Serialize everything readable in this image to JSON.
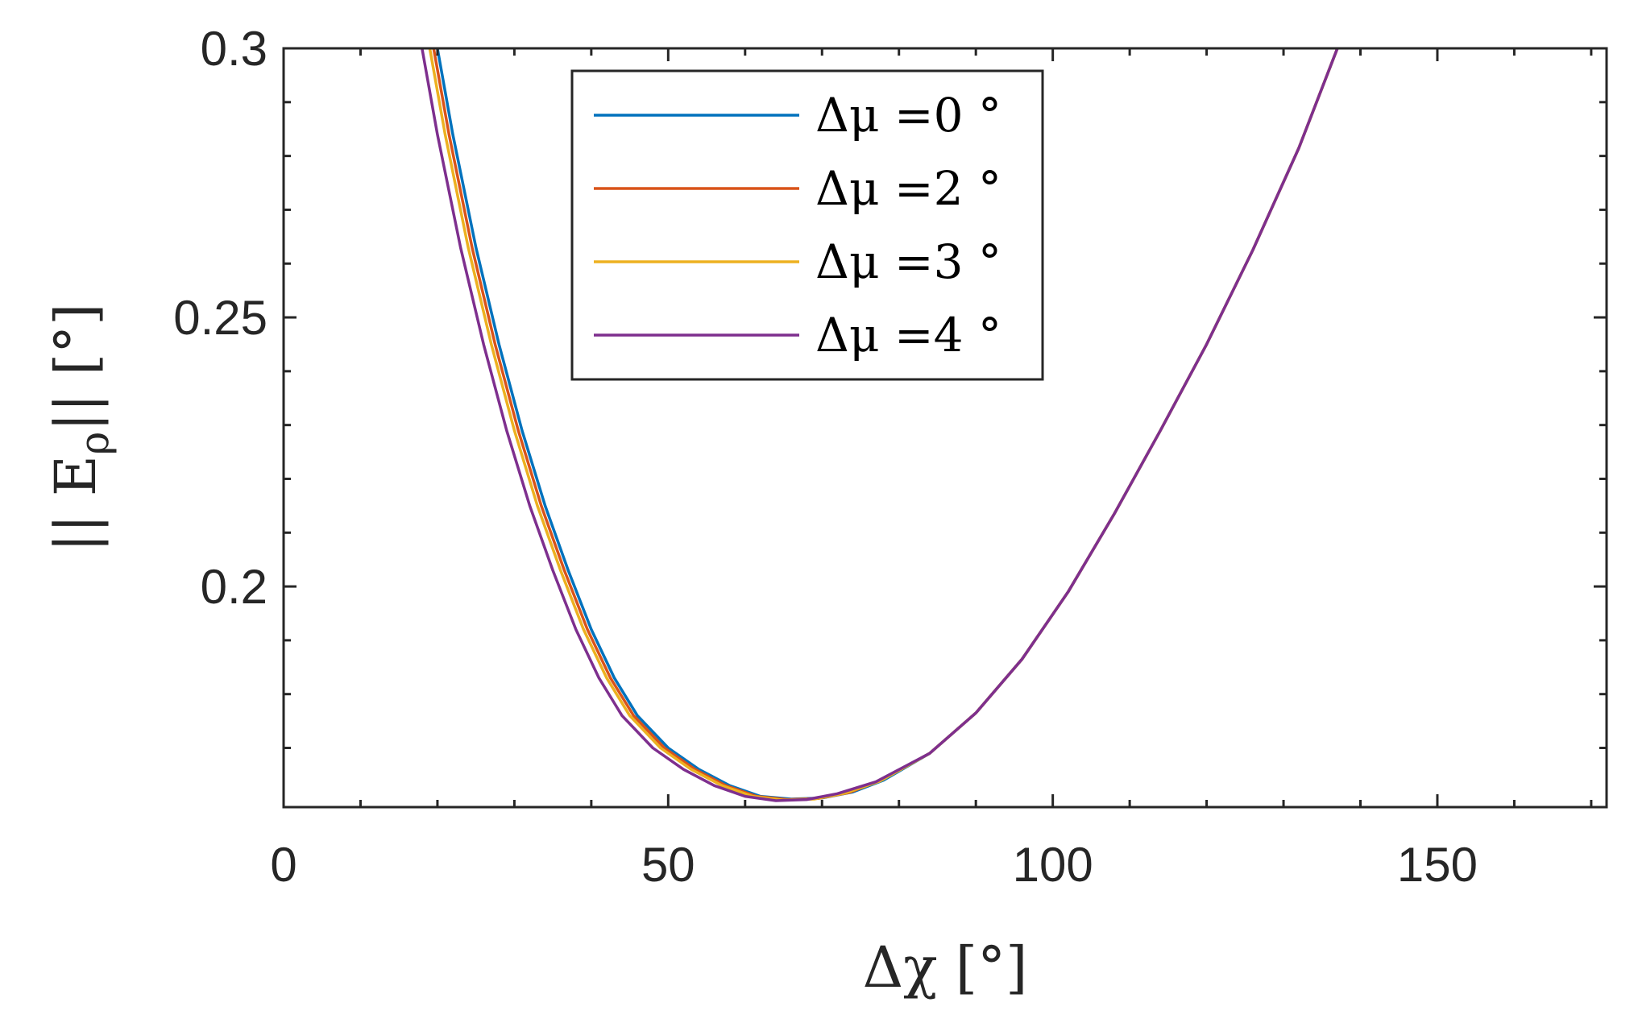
{
  "chart_data": {
    "type": "line",
    "title": "",
    "xlabel": "Δχ [°]",
    "ylabel": "|| E",
    "ylabel_subscript": "ρ",
    "ylabel_suffix": "||  [°]",
    "xlim": [
      0,
      172
    ],
    "ylim": [
      0.159,
      0.3
    ],
    "xticks": [
      0,
      50,
      100,
      150
    ],
    "xtick_labels": [
      "0",
      "50",
      "100",
      "150"
    ],
    "yticks": [
      0.2,
      0.25,
      0.3
    ],
    "ytick_labels": [
      "0.2",
      "0.25",
      "0.3"
    ],
    "grid": false,
    "legend_position": "top-center",
    "series": [
      {
        "name": "Δμ =0 °",
        "color": "#0072BD",
        "x": [
          19.5,
          20,
          22,
          25,
          28,
          31,
          34,
          37,
          40,
          43,
          46,
          50,
          54,
          58,
          62,
          66,
          70,
          74,
          78,
          84,
          90,
          96,
          102,
          108,
          114,
          120,
          126,
          132,
          137
        ],
        "y": [
          0.303,
          0.3,
          0.284,
          0.263,
          0.245,
          0.229,
          0.215,
          0.203,
          0.192,
          0.183,
          0.176,
          0.17,
          0.166,
          0.163,
          0.161,
          0.1605,
          0.1607,
          0.1618,
          0.164,
          0.169,
          0.1765,
          0.1865,
          0.199,
          0.2135,
          0.229,
          0.245,
          0.2625,
          0.2815,
          0.3
        ]
      },
      {
        "name": "Δμ =2 °",
        "color": "#D95319",
        "x": [
          19,
          19.5,
          21.5,
          24.5,
          27.5,
          30.5,
          33.5,
          36.5,
          39.5,
          42.5,
          45.5,
          49.5,
          53.5,
          57.5,
          61.5,
          65.5,
          69.5,
          73.5,
          77.5,
          84,
          90,
          96,
          102,
          108,
          114,
          120,
          126,
          132,
          137
        ],
        "y": [
          0.303,
          0.3,
          0.284,
          0.263,
          0.245,
          0.229,
          0.215,
          0.203,
          0.192,
          0.183,
          0.176,
          0.17,
          0.166,
          0.163,
          0.161,
          0.1604,
          0.1606,
          0.1617,
          0.1639,
          0.169,
          0.1765,
          0.1865,
          0.199,
          0.2135,
          0.229,
          0.245,
          0.2625,
          0.2815,
          0.3
        ]
      },
      {
        "name": "Δμ =3 °",
        "color": "#EDB120",
        "x": [
          18.5,
          19,
          21,
          24,
          27,
          30,
          33,
          36,
          39,
          42,
          45,
          49,
          53,
          57,
          61,
          65,
          69,
          73,
          77.5,
          84,
          90,
          96,
          102,
          108,
          114,
          120,
          126,
          132,
          137
        ],
        "y": [
          0.303,
          0.3,
          0.284,
          0.263,
          0.245,
          0.229,
          0.215,
          0.203,
          0.192,
          0.183,
          0.176,
          0.17,
          0.166,
          0.163,
          0.161,
          0.1603,
          0.1605,
          0.1616,
          0.1638,
          0.169,
          0.1765,
          0.1865,
          0.199,
          0.2135,
          0.229,
          0.245,
          0.2625,
          0.2815,
          0.3
        ]
      },
      {
        "name": "Δμ =4 °",
        "color": "#7E2F8E",
        "x": [
          17.5,
          18,
          20,
          23,
          26,
          29,
          32,
          35,
          38,
          41,
          44,
          48,
          52,
          56,
          60,
          64,
          68,
          72,
          77,
          84,
          90,
          96,
          102,
          108,
          114,
          120,
          126,
          132,
          137
        ],
        "y": [
          0.303,
          0.3,
          0.284,
          0.263,
          0.245,
          0.229,
          0.215,
          0.203,
          0.192,
          0.183,
          0.176,
          0.17,
          0.166,
          0.163,
          0.161,
          0.1602,
          0.1604,
          0.1615,
          0.1637,
          0.169,
          0.1765,
          0.1865,
          0.199,
          0.2135,
          0.229,
          0.245,
          0.2625,
          0.2815,
          0.3
        ]
      }
    ]
  }
}
